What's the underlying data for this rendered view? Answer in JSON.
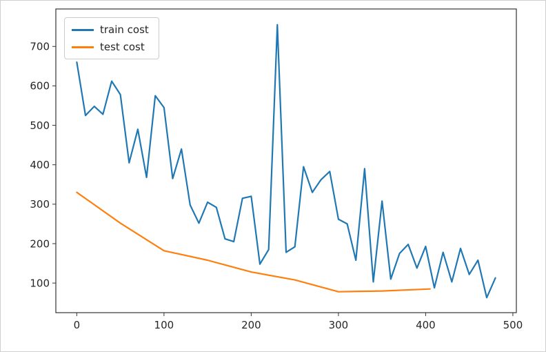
{
  "figure": {
    "background": "#ffffff",
    "border_color": "#cfcfcf"
  },
  "chart_data": {
    "type": "line",
    "title": "",
    "xlabel": "",
    "ylabel": "",
    "grid": false,
    "legend_position": "upper left",
    "xlim": [
      -24,
      504
    ],
    "ylim": [
      25,
      795
    ],
    "xticks": [
      0,
      100,
      200,
      300,
      400,
      500
    ],
    "yticks": [
      100,
      200,
      300,
      400,
      500,
      600,
      700
    ],
    "series": [
      {
        "name": "train cost",
        "color": "#1f77b4",
        "x": [
          0,
          10,
          20,
          30,
          40,
          50,
          60,
          70,
          80,
          90,
          100,
          110,
          120,
          130,
          140,
          150,
          160,
          170,
          180,
          190,
          200,
          210,
          220,
          230,
          240,
          250,
          260,
          270,
          280,
          290,
          300,
          310,
          320,
          330,
          340,
          350,
          360,
          370,
          380,
          390,
          400,
          410,
          420,
          430,
          440,
          450,
          460,
          470,
          480
        ],
        "y": [
          660,
          525,
          548,
          528,
          612,
          578,
          405,
          490,
          368,
          575,
          545,
          365,
          440,
          298,
          252,
          305,
          292,
          212,
          205,
          315,
          320,
          148,
          185,
          755,
          178,
          192,
          395,
          330,
          362,
          383,
          262,
          250,
          158,
          390,
          103,
          308,
          110,
          175,
          198,
          138,
          193,
          88,
          178,
          103,
          188,
          122,
          158,
          63,
          113
        ]
      },
      {
        "name": "test cost",
        "color": "#ff7f0e",
        "x": [
          0,
          50,
          100,
          150,
          200,
          250,
          300,
          350,
          405
        ],
        "y": [
          330,
          252,
          182,
          158,
          128,
          108,
          78,
          80,
          85
        ]
      }
    ]
  }
}
